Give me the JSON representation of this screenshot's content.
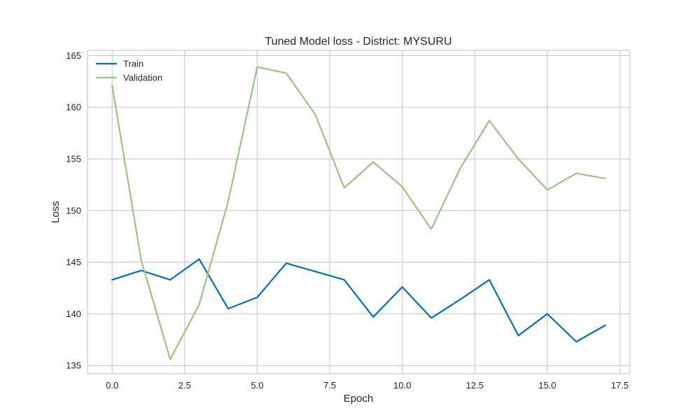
{
  "chart_data": {
    "type": "line",
    "title": "Tuned Model loss - District: MYSURU",
    "xlabel": "Epoch",
    "ylabel": "Loss",
    "xlim": [
      -0.85,
      17.85
    ],
    "ylim": [
      134.2,
      165.5
    ],
    "x_ticks": [
      "0.0",
      "2.5",
      "5.0",
      "7.5",
      "10.0",
      "12.5",
      "15.0",
      "17.5"
    ],
    "y_ticks": [
      "135",
      "140",
      "145",
      "150",
      "155",
      "160",
      "165"
    ],
    "grid": true,
    "legend_position": "upper-left",
    "x": [
      0,
      1,
      2,
      3,
      4,
      5,
      6,
      7,
      8,
      9,
      10,
      11,
      12,
      13,
      14,
      15,
      16,
      17
    ],
    "series": [
      {
        "name": "Train",
        "color": "#0072B2",
        "values": [
          143.3,
          144.2,
          143.3,
          145.3,
          140.5,
          141.6,
          144.9,
          144.1,
          143.3,
          139.7,
          142.6,
          139.6,
          141.4,
          143.3,
          137.9,
          140.0,
          137.3,
          138.9
        ]
      },
      {
        "name": "Validation",
        "color": "#99C57E",
        "values": [
          162.1,
          145.2,
          135.6,
          140.9,
          150.9,
          163.9,
          163.3,
          159.3,
          152.2,
          154.7,
          152.3,
          148.2,
          154.1,
          158.7,
          155.0,
          152.0,
          153.6,
          153.1
        ]
      }
    ]
  }
}
